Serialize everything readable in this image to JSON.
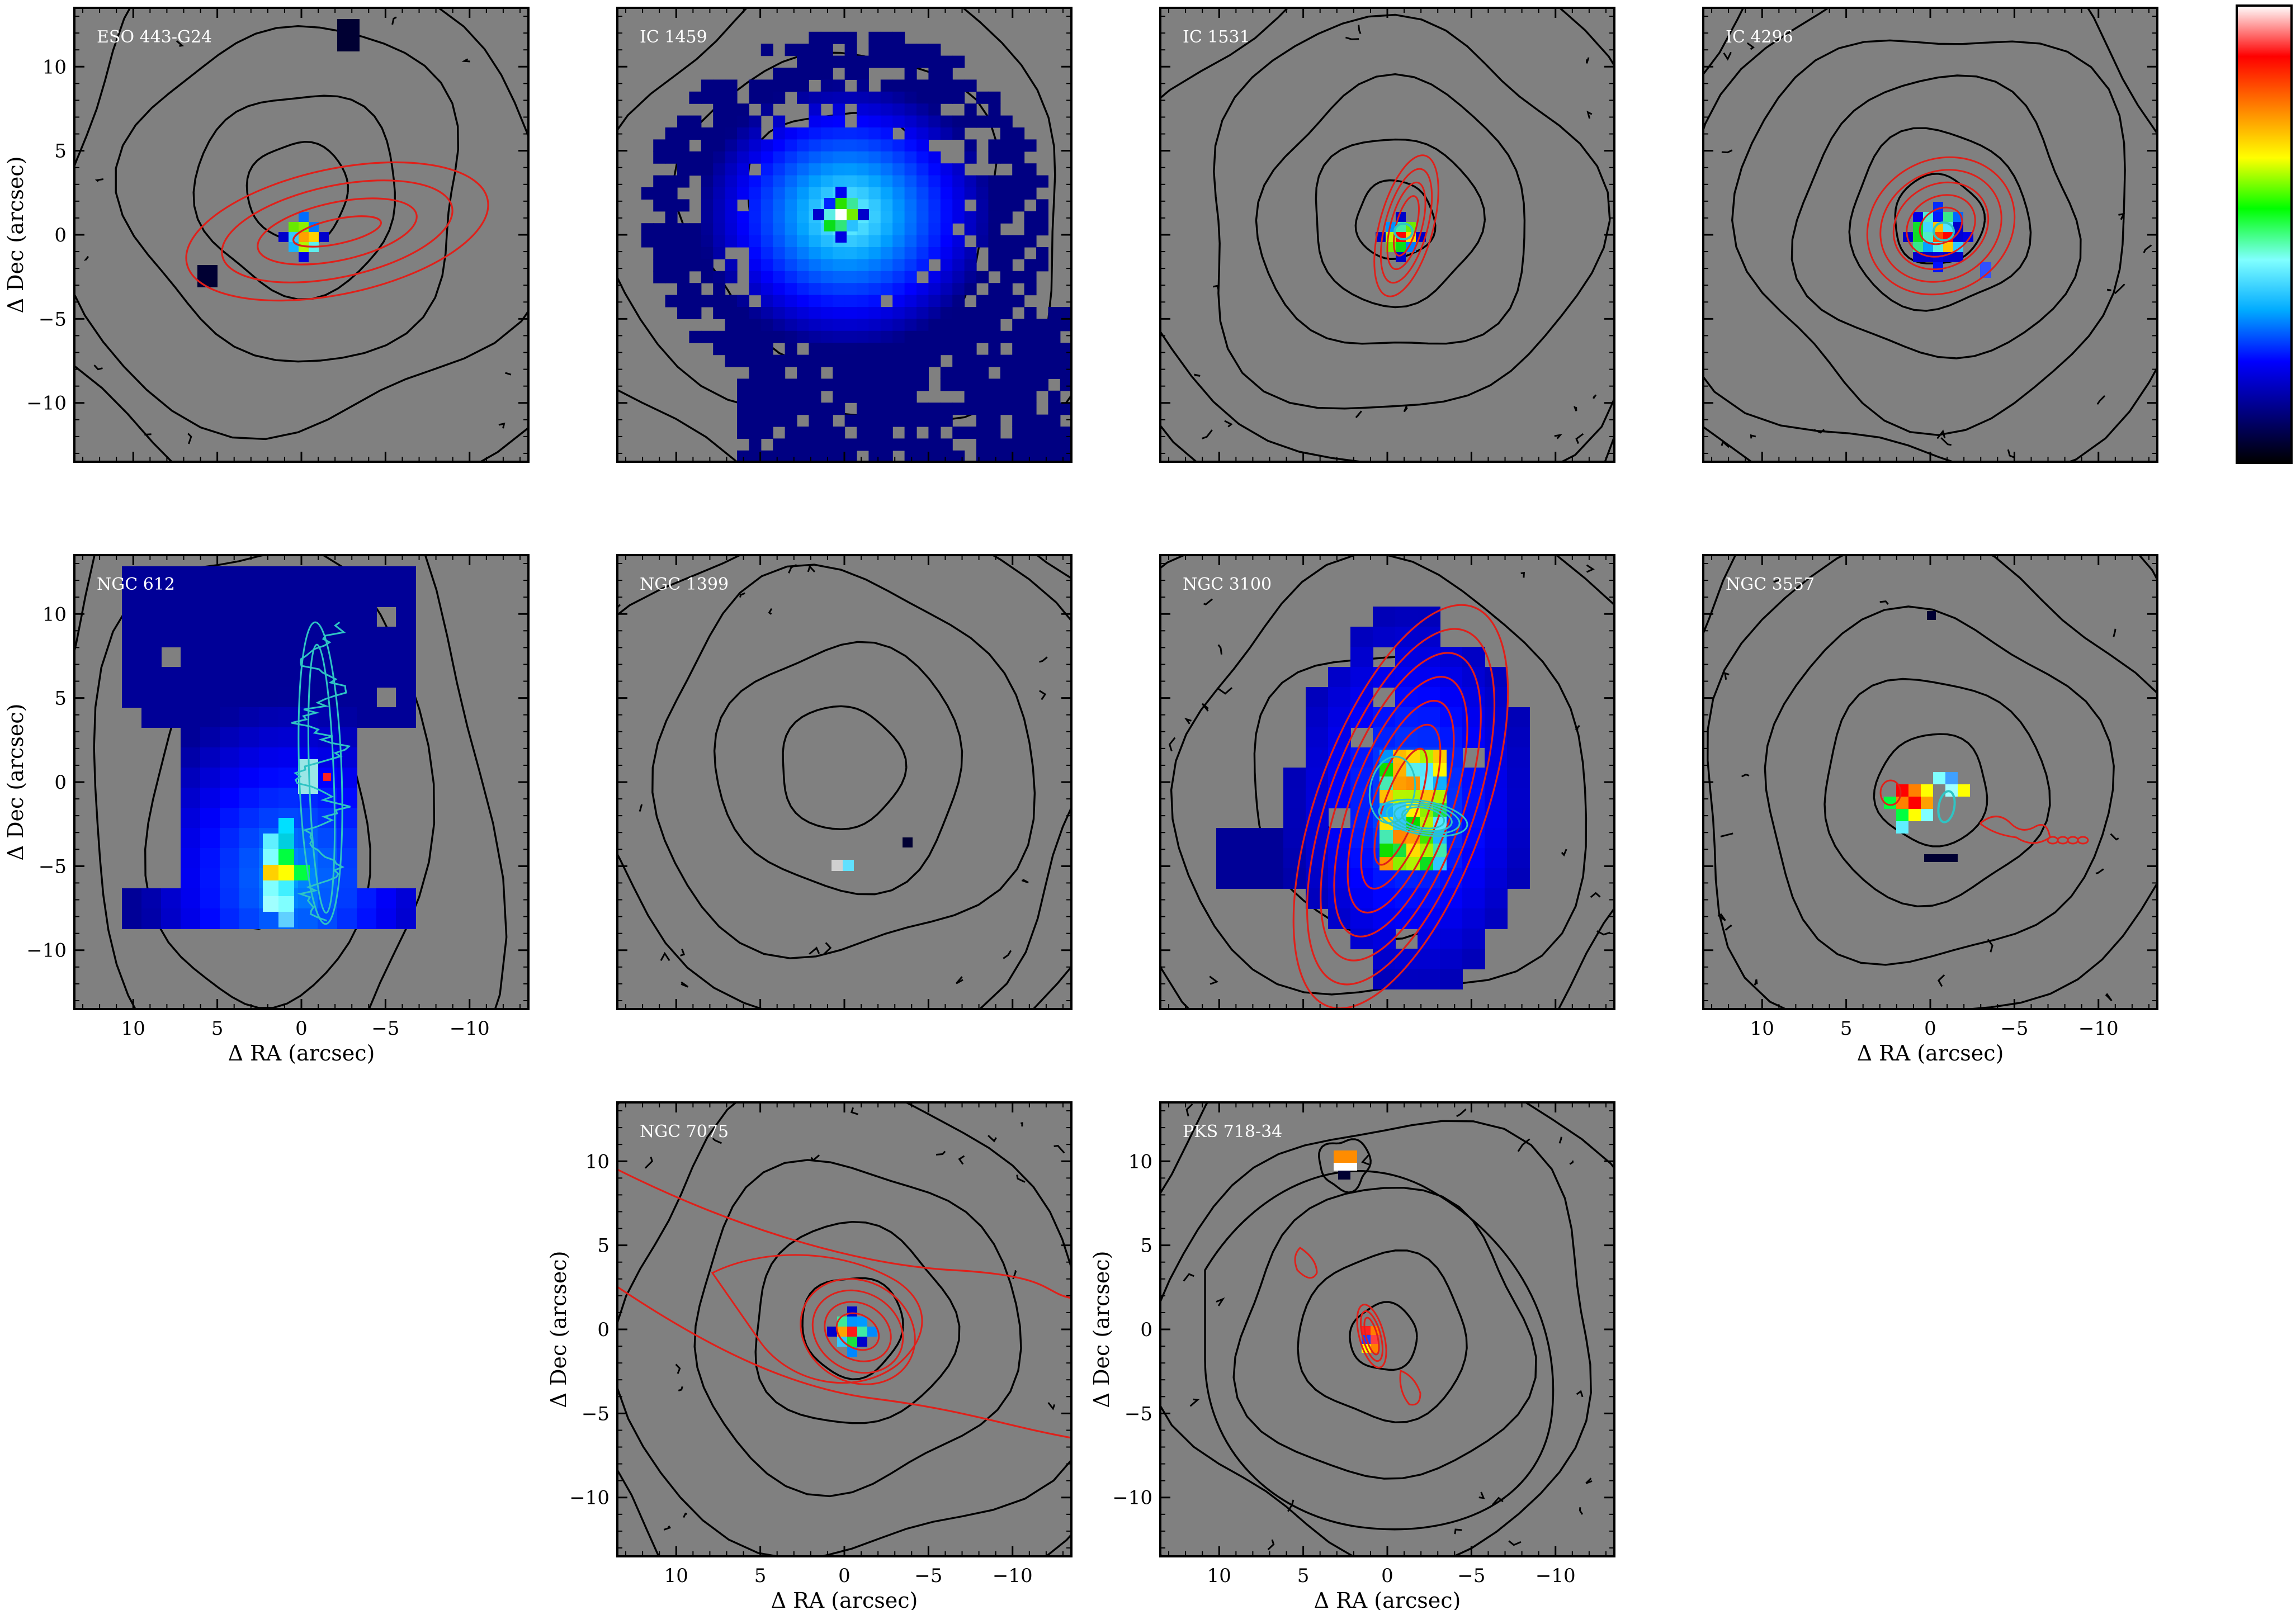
{
  "figure": {
    "ylabel": "Δ Dec (arcsec)",
    "xlabel": "Δ RA (arcsec)",
    "x_tick_labels": [
      "10",
      "5",
      "0",
      "−5",
      "−10"
    ],
    "y_tick_labels": [
      "10",
      "5",
      "0",
      "−5",
      "−10"
    ],
    "colors": {
      "background": "#808080",
      "frame": "#000000",
      "contour_optical": "#000000",
      "contour_red": "#e0201a",
      "contour_cyan": "#2fc4c4",
      "map_low": "#000033",
      "map_blue": "#0a1aa8",
      "colorbar": [
        "#000000",
        "#000080",
        "#0000ff",
        "#00aaff",
        "#80ffff",
        "#00ff00",
        "#ffff00",
        "#ff8000",
        "#ff0000",
        "#ffffff"
      ]
    }
  },
  "chart_data": [
    {
      "type": "heatmap",
      "name": "ESO 443-G24",
      "xlim": [
        13.5,
        -13.5
      ],
      "ylim": [
        -13.5,
        13.5
      ],
      "red_contours": true,
      "cyan_contours": false,
      "peak_offset": [
        0.5,
        0.5
      ]
    },
    {
      "type": "heatmap",
      "name": "IC 1459",
      "xlim": [
        13.5,
        -13.5
      ],
      "ylim": [
        -13.5,
        13.5
      ],
      "red_contours": false,
      "cyan_contours": false,
      "peak_offset": [
        0.5,
        1.5
      ]
    },
    {
      "type": "heatmap",
      "name": "IC 1531",
      "xlim": [
        13.5,
        -13.5
      ],
      "ylim": [
        -13.5,
        13.5
      ],
      "red_contours": true,
      "cyan_contours": true,
      "peak_offset": [
        -1,
        0.5
      ]
    },
    {
      "type": "heatmap",
      "name": "IC 4296",
      "xlim": [
        13.5,
        -13.5
      ],
      "ylim": [
        -13.5,
        13.5
      ],
      "red_contours": true,
      "cyan_contours": true,
      "peak_offset": [
        -0.5,
        0.5
      ]
    },
    {
      "type": "heatmap",
      "name": "NGC 612",
      "xlim": [
        13.5,
        -13.5
      ],
      "ylim": [
        -13.5,
        13.5
      ],
      "red_contours": false,
      "cyan_contours": true,
      "peak_offset": [
        1.5,
        -5.5
      ]
    },
    {
      "type": "heatmap",
      "name": "NGC 1399",
      "xlim": [
        13.5,
        -13.5
      ],
      "ylim": [
        -13.5,
        13.5
      ],
      "red_contours": false,
      "cyan_contours": false,
      "peak_offset": [
        0.5,
        -5
      ]
    },
    {
      "type": "heatmap",
      "name": "NGC 3100",
      "xlim": [
        13.5,
        -13.5
      ],
      "ylim": [
        -13.5,
        13.5
      ],
      "red_contours": true,
      "cyan_contours": true,
      "peak_offset": [
        -1,
        -2
      ]
    },
    {
      "type": "heatmap",
      "name": "NGC 3557",
      "xlim": [
        13.5,
        -13.5
      ],
      "ylim": [
        -13.5,
        13.5
      ],
      "red_contours": true,
      "cyan_contours": true,
      "peak_offset": [
        1,
        -1.5
      ]
    },
    {
      "type": "heatmap",
      "name": "NGC 7075",
      "xlim": [
        13.5,
        -13.5
      ],
      "ylim": [
        -13.5,
        13.5
      ],
      "red_contours": true,
      "cyan_contours": false,
      "peak_offset": [
        -0.5,
        0.5
      ]
    },
    {
      "type": "heatmap",
      "name": "PKS 718-34",
      "xlim": [
        13.5,
        -13.5
      ],
      "ylim": [
        -13.5,
        13.5
      ],
      "red_contours": true,
      "cyan_contours": false,
      "peak_offset": [
        0.5,
        0.5
      ]
    }
  ]
}
